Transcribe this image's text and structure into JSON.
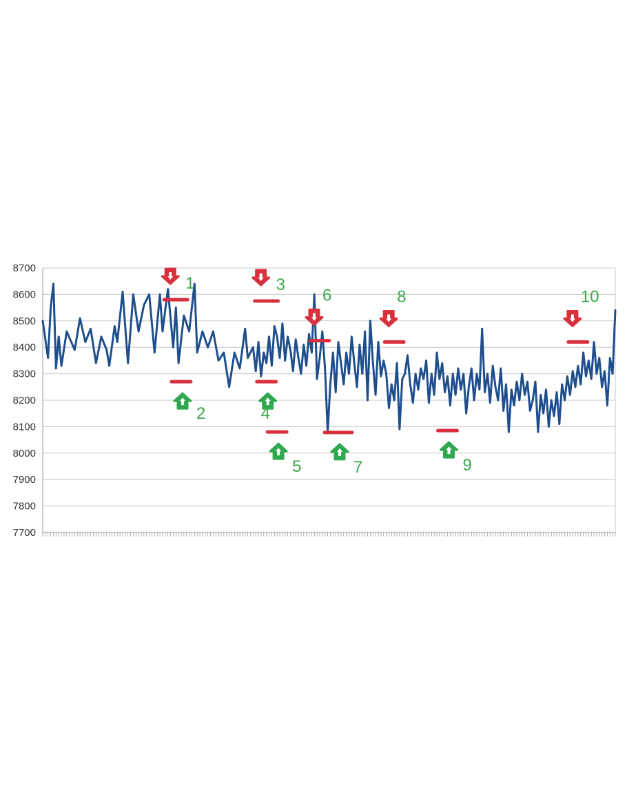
{
  "chart_data": {
    "type": "line",
    "title": "",
    "xlabel": "",
    "ylabel": "",
    "ylim": [
      7700,
      8700
    ],
    "yticks": [
      "8700",
      "8600",
      "8500",
      "8400",
      "8300",
      "8200",
      "8100",
      "8000",
      "7900",
      "7800",
      "7700"
    ],
    "grid": true,
    "legend": "none",
    "x_count": 216,
    "series": [
      {
        "color": "#1f4e8c",
        "anchors": [
          [
            0,
            8500
          ],
          [
            2,
            8360
          ],
          [
            3,
            8550
          ],
          [
            4,
            8640
          ],
          [
            5,
            8320
          ],
          [
            6,
            8440
          ],
          [
            7,
            8330
          ],
          [
            9,
            8460
          ],
          [
            12,
            8390
          ],
          [
            14,
            8510
          ],
          [
            16,
            8420
          ],
          [
            18,
            8470
          ],
          [
            20,
            8340
          ],
          [
            22,
            8440
          ],
          [
            24,
            8390
          ],
          [
            25,
            8330
          ],
          [
            27,
            8480
          ],
          [
            28,
            8420
          ],
          [
            30,
            8610
          ],
          [
            32,
            8340
          ],
          [
            34,
            8600
          ],
          [
            36,
            8460
          ],
          [
            38,
            8560
          ],
          [
            40,
            8600
          ],
          [
            42,
            8380
          ],
          [
            44,
            8600
          ],
          [
            45,
            8460
          ],
          [
            47,
            8620
          ],
          [
            49,
            8400
          ],
          [
            50,
            8550
          ],
          [
            51,
            8340
          ],
          [
            53,
            8520
          ],
          [
            55,
            8460
          ],
          [
            57,
            8640
          ],
          [
            58,
            8380
          ],
          [
            60,
            8460
          ],
          [
            62,
            8400
          ],
          [
            64,
            8460
          ],
          [
            66,
            8350
          ],
          [
            68,
            8380
          ],
          [
            70,
            8250
          ],
          [
            72,
            8380
          ],
          [
            74,
            8320
          ],
          [
            76,
            8470
          ],
          [
            77,
            8360
          ],
          [
            79,
            8400
          ],
          [
            80,
            8310
          ],
          [
            81,
            8420
          ],
          [
            82,
            8290
          ],
          [
            83,
            8380
          ],
          [
            84,
            8340
          ],
          [
            85,
            8440
          ],
          [
            86,
            8330
          ],
          [
            87,
            8480
          ],
          [
            88,
            8440
          ],
          [
            89,
            8360
          ],
          [
            90,
            8490
          ],
          [
            91,
            8350
          ],
          [
            92,
            8440
          ],
          [
            93,
            8390
          ],
          [
            94,
            8310
          ],
          [
            95,
            8430
          ],
          [
            96,
            8360
          ],
          [
            97,
            8300
          ],
          [
            98,
            8410
          ],
          [
            99,
            8330
          ],
          [
            100,
            8450
          ],
          [
            101,
            8380
          ],
          [
            102,
            8600
          ],
          [
            103,
            8280
          ],
          [
            104,
            8360
          ],
          [
            105,
            8460
          ],
          [
            106,
            8320
          ],
          [
            107,
            8080
          ],
          [
            108,
            8260
          ],
          [
            109,
            8380
          ],
          [
            110,
            8230
          ],
          [
            111,
            8420
          ],
          [
            112,
            8340
          ],
          [
            113,
            8260
          ],
          [
            114,
            8380
          ],
          [
            115,
            8300
          ],
          [
            116,
            8440
          ],
          [
            117,
            8340
          ],
          [
            118,
            8250
          ],
          [
            119,
            8410
          ],
          [
            120,
            8300
          ],
          [
            121,
            8460
          ],
          [
            122,
            8200
          ],
          [
            123,
            8500
          ],
          [
            124,
            8340
          ],
          [
            125,
            8220
          ],
          [
            126,
            8420
          ],
          [
            127,
            8290
          ],
          [
            128,
            8350
          ],
          [
            129,
            8300
          ],
          [
            130,
            8170
          ],
          [
            131,
            8260
          ],
          [
            132,
            8200
          ],
          [
            133,
            8340
          ],
          [
            134,
            8090
          ],
          [
            135,
            8280
          ],
          [
            136,
            8300
          ],
          [
            137,
            8370
          ],
          [
            138,
            8260
          ],
          [
            139,
            8190
          ],
          [
            140,
            8300
          ],
          [
            141,
            8240
          ],
          [
            142,
            8320
          ],
          [
            143,
            8280
          ],
          [
            144,
            8350
          ],
          [
            145,
            8190
          ],
          [
            146,
            8300
          ],
          [
            147,
            8220
          ],
          [
            148,
            8380
          ],
          [
            149,
            8280
          ],
          [
            150,
            8340
          ],
          [
            151,
            8230
          ],
          [
            152,
            8290
          ],
          [
            153,
            8180
          ],
          [
            154,
            8300
          ],
          [
            155,
            8220
          ],
          [
            156,
            8320
          ],
          [
            157,
            8240
          ],
          [
            158,
            8300
          ],
          [
            159,
            8150
          ],
          [
            160,
            8250
          ],
          [
            161,
            8320
          ],
          [
            162,
            8200
          ],
          [
            163,
            8300
          ],
          [
            164,
            8240
          ],
          [
            165,
            8470
          ],
          [
            166,
            8230
          ],
          [
            167,
            8300
          ],
          [
            168,
            8190
          ],
          [
            169,
            8330
          ],
          [
            170,
            8250
          ],
          [
            171,
            8200
          ],
          [
            172,
            8320
          ],
          [
            173,
            8160
          ],
          [
            174,
            8260
          ],
          [
            175,
            8080
          ],
          [
            176,
            8240
          ],
          [
            177,
            8180
          ],
          [
            178,
            8270
          ],
          [
            179,
            8200
          ],
          [
            180,
            8300
          ],
          [
            181,
            8220
          ],
          [
            182,
            8270
          ],
          [
            183,
            8160
          ],
          [
            184,
            8200
          ],
          [
            185,
            8270
          ],
          [
            186,
            8080
          ],
          [
            187,
            8220
          ],
          [
            188,
            8150
          ],
          [
            189,
            8240
          ],
          [
            190,
            8100
          ],
          [
            191,
            8200
          ],
          [
            192,
            8140
          ],
          [
            193,
            8230
          ],
          [
            194,
            8110
          ],
          [
            195,
            8260
          ],
          [
            196,
            8200
          ],
          [
            197,
            8290
          ],
          [
            198,
            8220
          ],
          [
            199,
            8310
          ],
          [
            200,
            8250
          ],
          [
            201,
            8330
          ],
          [
            202,
            8260
          ],
          [
            203,
            8380
          ],
          [
            204,
            8290
          ],
          [
            205,
            8350
          ],
          [
            206,
            8280
          ],
          [
            207,
            8420
          ],
          [
            208,
            8300
          ],
          [
            209,
            8360
          ],
          [
            210,
            8250
          ],
          [
            211,
            8310
          ],
          [
            212,
            8180
          ],
          [
            213,
            8360
          ],
          [
            214,
            8300
          ],
          [
            215,
            8540
          ]
        ]
      }
    ],
    "levels": [
      {
        "kind": "sell",
        "label": "1",
        "x": 50,
        "y": 8580
      },
      {
        "kind": "buy",
        "label": "2",
        "x": 52,
        "y": 8270
      },
      {
        "kind": "sell",
        "label": "3",
        "x": 84,
        "y": 8575
      },
      {
        "kind": "buy",
        "label": "4",
        "x": 84,
        "y": 8270
      },
      {
        "kind": "buy",
        "label": "5",
        "x": 88,
        "y": 8080
      },
      {
        "kind": "sell",
        "label": "6",
        "x": 104,
        "y": 8425
      },
      {
        "kind": "buy",
        "label": "7",
        "x": 111,
        "y": 8078
      },
      {
        "kind": "sell",
        "label": "8",
        "x": 132,
        "y": 8420
      },
      {
        "kind": "buy",
        "label": "9",
        "x": 152,
        "y": 8085
      },
      {
        "kind": "sell",
        "label": "10",
        "x": 201,
        "y": 8420
      }
    ],
    "colors": {
      "line": "#1f4e8c",
      "sell": "#d9303e",
      "buy": "#2fa84f",
      "label": "#3aa84a",
      "grid": "#c8c8c8",
      "axis": "#9a9a9a",
      "tick_text": "#333333"
    }
  }
}
